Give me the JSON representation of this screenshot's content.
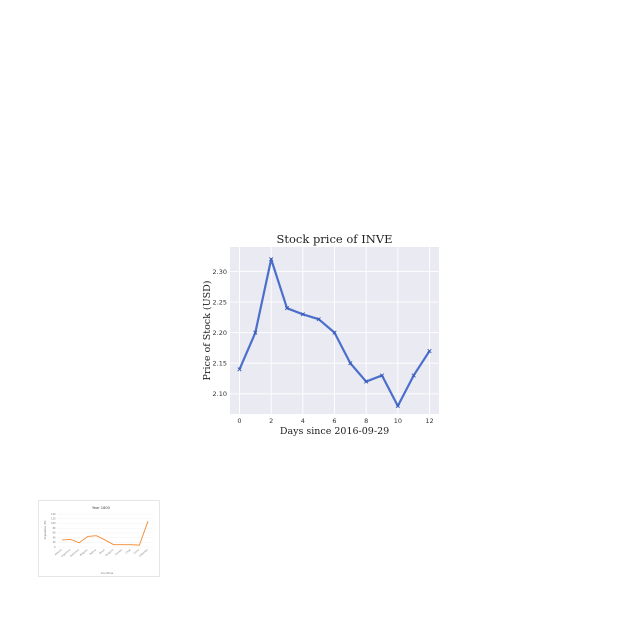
{
  "chart_data": [
    {
      "type": "line",
      "title": "Stock price of INVE",
      "xlabel": "Days since 2016-09-29",
      "ylabel": "Price of Stock (USD)",
      "x": [
        0,
        1,
        2,
        3,
        4,
        5,
        6,
        7,
        8,
        9,
        10,
        11,
        12
      ],
      "values": [
        2.14,
        2.2,
        2.32,
        2.24,
        2.23,
        2.222,
        2.2,
        2.15,
        2.12,
        2.13,
        2.08,
        2.13,
        2.17
      ],
      "xlim": [
        -0.6,
        12.6
      ],
      "ylim": [
        2.067,
        2.34
      ],
      "xticks": [
        "0",
        "2",
        "4",
        "6",
        "8",
        "10",
        "12"
      ],
      "yticks": [
        "2.10",
        "2.15",
        "2.20",
        "2.25",
        "2.30"
      ],
      "grid": true,
      "style": {
        "line_color": "#4c6fcc",
        "background": "#eaeaf2",
        "marker": "x"
      }
    },
    {
      "type": "line",
      "title": "Year 1800",
      "xlabel": "Countries",
      "ylabel": "Population (M)",
      "categories": [
        "Albania",
        "Argentina",
        "Bahamas",
        "Belgium",
        "Bolivia",
        "Brazil",
        "Bulgaria",
        "Canada",
        "Chad",
        "China",
        "Colombia"
      ],
      "values": [
        30,
        32,
        18,
        45,
        48,
        30,
        10,
        10,
        10,
        8,
        110
      ],
      "ylim": [
        0,
        140
      ],
      "yticks": [
        "0",
        "20",
        "40",
        "60",
        "80",
        "100",
        "120",
        "140"
      ],
      "grid": true,
      "style": {
        "line_color": "#f28a30",
        "background": "#ffffff"
      }
    }
  ]
}
